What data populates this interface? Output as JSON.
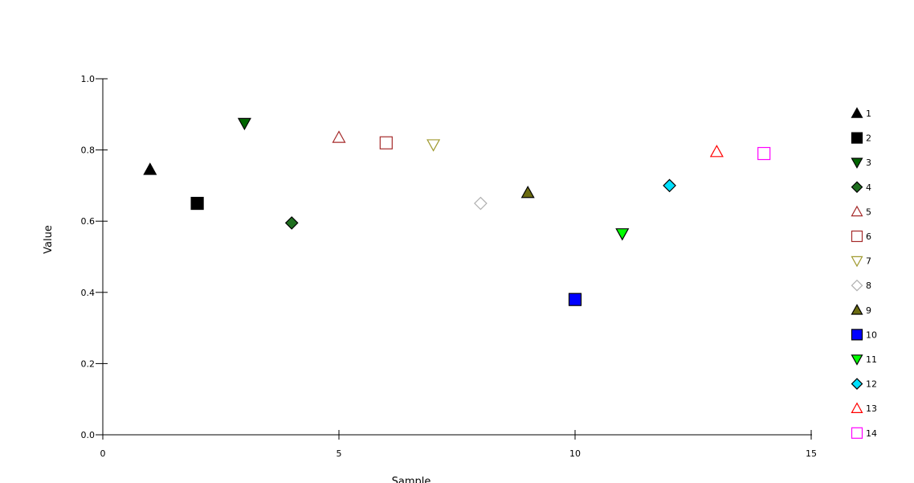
{
  "chart_data": {
    "type": "scatter",
    "xlabel": "Sample",
    "ylabel": "Value",
    "xlim": [
      0,
      15
    ],
    "ylim": [
      0,
      1.0
    ],
    "x_ticks": [
      "0",
      "5",
      "10",
      "15"
    ],
    "y_ticks": [
      "0.0",
      "0.2",
      "0.4",
      "0.6",
      "0.8",
      "1.0"
    ],
    "grid": false,
    "legend_position": "right",
    "series": [
      {
        "name": "1",
        "x": 1,
        "y": 0.745,
        "marker": "triangle-up",
        "fill": "#000000",
        "stroke": "#000000",
        "filled": true
      },
      {
        "name": "2",
        "x": 2,
        "y": 0.65,
        "marker": "square",
        "fill": "#000000",
        "stroke": "#000000",
        "filled": true
      },
      {
        "name": "3",
        "x": 3,
        "y": 0.875,
        "marker": "triangle-down",
        "fill": "#006400",
        "stroke": "#000000",
        "filled": true
      },
      {
        "name": "4",
        "x": 4,
        "y": 0.595,
        "marker": "diamond",
        "fill": "#1f6f1f",
        "stroke": "#000000",
        "filled": true
      },
      {
        "name": "5",
        "x": 5,
        "y": 0.835,
        "marker": "triangle-up",
        "fill": "none",
        "stroke": "#a52a2a",
        "filled": false
      },
      {
        "name": "6",
        "x": 6,
        "y": 0.82,
        "marker": "square",
        "fill": "none",
        "stroke": "#a52a2a",
        "filled": false
      },
      {
        "name": "7",
        "x": 7,
        "y": 0.815,
        "marker": "triangle-down",
        "fill": "none",
        "stroke": "#a09a30",
        "filled": false
      },
      {
        "name": "8",
        "x": 8,
        "y": 0.65,
        "marker": "diamond",
        "fill": "none",
        "stroke": "#b0b0b0",
        "filled": false
      },
      {
        "name": "9",
        "x": 9,
        "y": 0.68,
        "marker": "triangle-up",
        "fill": "#6b6b10",
        "stroke": "#000000",
        "filled": true
      },
      {
        "name": "10",
        "x": 10,
        "y": 0.38,
        "marker": "square",
        "fill": "#0000ff",
        "stroke": "#000000",
        "filled": true
      },
      {
        "name": "11",
        "x": 11,
        "y": 0.565,
        "marker": "triangle-down",
        "fill": "#00ff00",
        "stroke": "#000000",
        "filled": true
      },
      {
        "name": "12",
        "x": 12,
        "y": 0.7,
        "marker": "diamond",
        "fill": "#00e0ff",
        "stroke": "#000000",
        "filled": true
      },
      {
        "name": "13",
        "x": 13,
        "y": 0.795,
        "marker": "triangle-up",
        "fill": "none",
        "stroke": "#ff0000",
        "filled": false
      },
      {
        "name": "14",
        "x": 14,
        "y": 0.79,
        "marker": "square",
        "fill": "none",
        "stroke": "#ff00ff",
        "filled": false
      }
    ]
  }
}
